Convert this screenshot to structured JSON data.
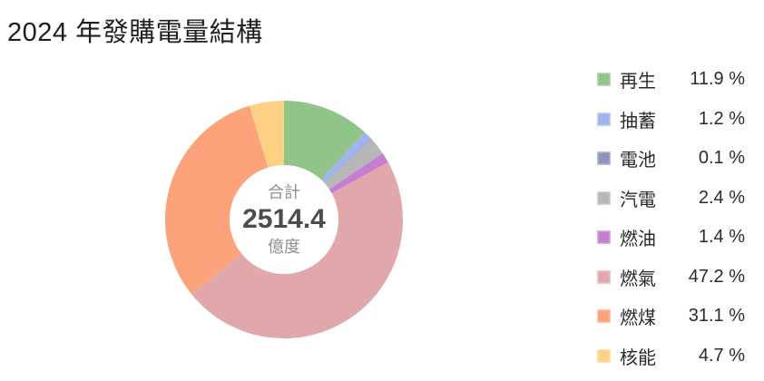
{
  "title": "2024 年發購電量結構",
  "chart_data": {
    "type": "pie",
    "donut": true,
    "title": "2024 年發購電量結構",
    "legend_position": "right",
    "start_angle_deg": 0,
    "clockwise": true,
    "unit": "%",
    "center": {
      "label": "合計",
      "value": "2514.4",
      "unit": "億度"
    },
    "series": [
      {
        "id": "renewable",
        "label": "再生",
        "value": 11.9,
        "percent_label": "11.9 %",
        "color": "#90C488"
      },
      {
        "id": "pumped-storage",
        "label": "抽蓄",
        "value": 1.2,
        "percent_label": "1.2 %",
        "color": "#9FB3EE"
      },
      {
        "id": "battery",
        "label": "電池",
        "value": 0.1,
        "percent_label": "0.1 %",
        "color": "#8C96BA"
      },
      {
        "id": "cogeneration",
        "label": "汽電",
        "value": 2.4,
        "percent_label": "2.4 %",
        "color": "#B7B7B7"
      },
      {
        "id": "oil",
        "label": "燃油",
        "value": 1.4,
        "percent_label": "1.4 %",
        "color": "#C77DD2"
      },
      {
        "id": "gas",
        "label": "燃氣",
        "value": 47.2,
        "percent_label": "47.2 %",
        "color": "#E0A8AB"
      },
      {
        "id": "coal",
        "label": "燃煤",
        "value": 31.1,
        "percent_label": "31.1 %",
        "color": "#FCA37C"
      },
      {
        "id": "nuclear",
        "label": "核能",
        "value": 4.7,
        "percent_label": "4.7 %",
        "color": "#FDD083"
      }
    ]
  }
}
